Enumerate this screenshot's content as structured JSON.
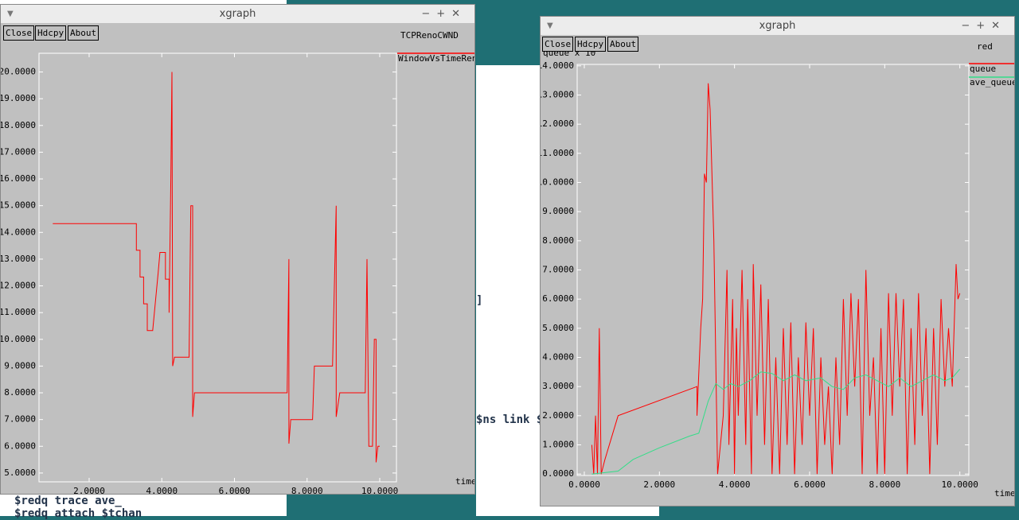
{
  "windows": [
    {
      "title": "xgraph",
      "buttons": [
        "Close",
        "Hdcpy",
        "About"
      ]
    },
    {
      "title": "xgraph",
      "buttons": [
        "Close",
        "Hdcpy",
        "About"
      ]
    }
  ],
  "terminal": {
    "lines": [
      "$ns link $",
      "]",
      "$redq trace ave_",
      "$redq attach $tchan"
    ]
  },
  "chart_data": [
    {
      "type": "line",
      "title": "TCPRenoCWND",
      "x_label": "time",
      "xlim": [
        0.62,
        10.46
      ],
      "ylim": [
        4.67,
        20.7
      ],
      "grid": false,
      "xticks": [
        {
          "value": 2,
          "label": "2.0000"
        },
        {
          "value": 4,
          "label": "4.0000"
        },
        {
          "value": 6,
          "label": "6.0000"
        },
        {
          "value": 8,
          "label": "8.0000"
        },
        {
          "value": 10,
          "label": "10.0000"
        }
      ],
      "yticks": [
        {
          "value": 5,
          "label": "5.0000"
        },
        {
          "value": 6,
          "label": "6.0000"
        },
        {
          "value": 7,
          "label": "7.0000"
        },
        {
          "value": 8,
          "label": "8.0000"
        },
        {
          "value": 9,
          "label": "9.0000"
        },
        {
          "value": 10,
          "label": "10.0000"
        },
        {
          "value": 11,
          "label": "11.0000"
        },
        {
          "value": 12,
          "label": "12.0000"
        },
        {
          "value": 13,
          "label": "13.0000"
        },
        {
          "value": 14,
          "label": "14.0000"
        },
        {
          "value": 15,
          "label": "15.0000"
        },
        {
          "value": 16,
          "label": "16.0000"
        },
        {
          "value": 17,
          "label": "17.0000"
        },
        {
          "value": 18,
          "label": "18.0000"
        },
        {
          "value": 19,
          "label": "19.0000"
        },
        {
          "value": 20,
          "label": "20.0000"
        }
      ],
      "series": [
        {
          "name": "WindowVsTimeReno",
          "color": "#ff0000",
          "x": [
            1.0,
            3.3,
            3.3,
            3.4,
            3.4,
            3.5,
            3.5,
            3.6,
            3.6,
            3.75,
            3.9,
            3.95,
            4.1,
            4.1,
            4.2,
            4.2,
            4.25,
            4.28,
            4.3,
            4.35,
            4.75,
            4.8,
            4.85,
            4.85,
            4.9,
            7.45,
            7.5,
            7.5,
            7.55,
            8.15,
            8.2,
            8.7,
            8.8,
            8.8,
            8.9,
            9.6,
            9.65,
            9.7,
            9.8,
            9.85,
            9.9,
            9.9,
            9.95,
            10.0
          ],
          "values": [
            14.33,
            14.33,
            13.33,
            13.33,
            12.33,
            12.33,
            11.33,
            11.33,
            10.33,
            10.33,
            12.5,
            13.25,
            13.25,
            12.25,
            12.25,
            11,
            16,
            20,
            9,
            9.33,
            9.33,
            15,
            15,
            7.1,
            8,
            8,
            13,
            6.1,
            7,
            7,
            9,
            9,
            15,
            7.1,
            8,
            8,
            13,
            6,
            6,
            10,
            10,
            5.4,
            6,
            6
          ]
        }
      ]
    },
    {
      "type": "line",
      "title": "red",
      "y_label": "queue x 10^",
      "x_label": "time",
      "xlim": [
        -0.19,
        10.24
      ],
      "ylim": [
        -0.05,
        14.05
      ],
      "grid": false,
      "xticks": [
        {
          "value": 0,
          "label": "0.0000"
        },
        {
          "value": 2,
          "label": "2.0000"
        },
        {
          "value": 4,
          "label": "4.0000"
        },
        {
          "value": 6,
          "label": "6.0000"
        },
        {
          "value": 8,
          "label": "8.0000"
        },
        {
          "value": 10,
          "label": "10.0000"
        }
      ],
      "yticks": [
        {
          "value": 0,
          "label": "0.0000"
        },
        {
          "value": 1,
          "label": "1.0000"
        },
        {
          "value": 2,
          "label": "2.0000"
        },
        {
          "value": 3,
          "label": "3.0000"
        },
        {
          "value": 4,
          "label": "4.0000"
        },
        {
          "value": 5,
          "label": "5.0000"
        },
        {
          "value": 6,
          "label": "6.0000"
        },
        {
          "value": 7,
          "label": "7.0000"
        },
        {
          "value": 8,
          "label": "8.0000"
        },
        {
          "value": 9,
          "label": "9.0000"
        },
        {
          "value": 10,
          "label": "10.0000"
        },
        {
          "value": 11,
          "label": "11.0000"
        },
        {
          "value": 12,
          "label": "12.0000"
        },
        {
          "value": 13,
          "label": "13.0000"
        },
        {
          "value": 14,
          "label": "14.0000"
        }
      ],
      "series": [
        {
          "name": "queue",
          "color": "#ff0000",
          "x": [
            0.2,
            0.25,
            0.3,
            0.35,
            0.4,
            0.45,
            0.55,
            0.9,
            3.0,
            3.0,
            3.1,
            3.15,
            3.2,
            3.25,
            3.3,
            3.35,
            3.45,
            3.55,
            3.7,
            3.8,
            3.85,
            3.95,
            4.0,
            4.05,
            4.1,
            4.2,
            4.3,
            4.35,
            4.45,
            4.5,
            4.6,
            4.7,
            4.8,
            4.9,
            5.0,
            5.1,
            5.2,
            5.3,
            5.4,
            5.5,
            5.6,
            5.7,
            5.8,
            5.9,
            6.0,
            6.1,
            6.2,
            6.3,
            6.4,
            6.5,
            6.6,
            6.7,
            6.8,
            6.9,
            7.0,
            7.1,
            7.2,
            7.3,
            7.4,
            7.5,
            7.6,
            7.7,
            7.8,
            7.9,
            8.0,
            8.1,
            8.2,
            8.3,
            8.4,
            8.5,
            8.6,
            8.7,
            8.8,
            8.9,
            9.0,
            9.1,
            9.2,
            9.3,
            9.4,
            9.5,
            9.6,
            9.7,
            9.8,
            9.9,
            9.95,
            10.0
          ],
          "values": [
            1,
            0,
            2,
            0,
            5,
            0,
            0.5,
            2,
            3,
            2,
            5,
            6,
            10.3,
            10,
            13.4,
            12.5,
            8,
            0,
            2,
            7,
            1,
            6,
            0,
            5,
            2,
            7,
            1,
            6,
            0,
            7.2,
            2,
            6.5,
            1,
            6,
            0,
            4,
            0,
            5,
            1,
            5.2,
            0,
            4,
            1,
            5.2,
            2,
            5,
            0,
            4,
            1,
            3,
            0,
            4,
            1,
            6,
            2,
            6.2,
            3,
            6,
            0,
            7,
            2,
            4,
            0,
            5,
            0,
            6.2,
            2,
            6.2,
            3,
            6,
            0,
            5,
            1,
            6.2,
            2,
            5,
            0,
            5,
            1,
            6,
            3,
            5,
            3,
            7.2,
            6,
            6.2
          ]
        },
        {
          "name": "ave_queue",
          "color": "#33dd88",
          "x": [
            0.2,
            0.9,
            1.3,
            2.0,
            2.8,
            3.05,
            3.3,
            3.5,
            3.7,
            3.9,
            4.1,
            4.4,
            4.7,
            5.0,
            5.3,
            5.6,
            5.9,
            6.3,
            6.6,
            6.9,
            7.2,
            7.5,
            7.8,
            8.1,
            8.4,
            8.7,
            9.0,
            9.3,
            9.6,
            9.8,
            10.0
          ],
          "values": [
            0,
            0.1,
            0.5,
            0.9,
            1.3,
            1.4,
            2.5,
            3.1,
            2.9,
            3.1,
            3.0,
            3.2,
            3.5,
            3.45,
            3.2,
            3.4,
            3.2,
            3.3,
            3.0,
            2.9,
            3.3,
            3.4,
            3.2,
            3.0,
            3.3,
            3.0,
            3.2,
            3.4,
            3.2,
            3.3,
            3.6
          ]
        }
      ]
    }
  ]
}
